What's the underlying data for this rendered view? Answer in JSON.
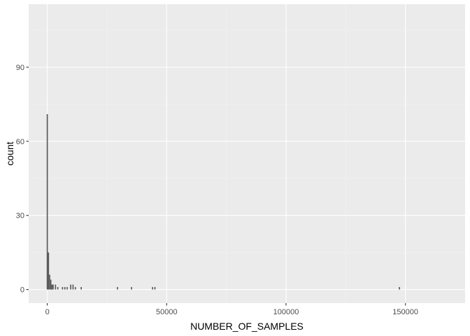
{
  "chart_data": {
    "type": "bar",
    "subtype": "histogram",
    "xlabel": "NUMBER_OF_SAMPLES",
    "ylabel": "count",
    "xlim": [
      -7800,
      175000
    ],
    "ylim": [
      -5.5,
      115.5
    ],
    "x_ticks": [
      0,
      50000,
      100000,
      150000
    ],
    "x_tick_labels": [
      "0",
      "50000",
      "100000",
      "150000"
    ],
    "y_ticks": [
      0,
      30,
      60,
      90
    ],
    "y_tick_labels": [
      "0",
      "30",
      "60",
      "90"
    ],
    "x_minor_ticks": [
      25000,
      75000,
      125000
    ],
    "y_minor_ticks": [
      15,
      45,
      75,
      105
    ],
    "bin_width": 490,
    "grid": true,
    "legend": "none",
    "bins": [
      {
        "x": 0,
        "count": 71
      },
      {
        "x": 490,
        "count": 15
      },
      {
        "x": 980,
        "count": 6
      },
      {
        "x": 1470,
        "count": 4
      },
      {
        "x": 1960,
        "count": 2
      },
      {
        "x": 2450,
        "count": 2
      },
      {
        "x": 3430,
        "count": 2
      },
      {
        "x": 4410,
        "count": 1
      },
      {
        "x": 6370,
        "count": 1
      },
      {
        "x": 7350,
        "count": 1
      },
      {
        "x": 8330,
        "count": 1
      },
      {
        "x": 9800,
        "count": 2
      },
      {
        "x": 10780,
        "count": 2
      },
      {
        "x": 11760,
        "count": 1
      },
      {
        "x": 14210,
        "count": 1
      },
      {
        "x": 29400,
        "count": 1
      },
      {
        "x": 35280,
        "count": 1
      },
      {
        "x": 44100,
        "count": 1
      },
      {
        "x": 45080,
        "count": 1
      },
      {
        "x": 147490,
        "count": 1
      }
    ]
  },
  "colors": {
    "panel_background": "#ebebeb",
    "grid_major": "#ffffff",
    "grid_minor": "#f2f2f2",
    "bar_fill": "#595959",
    "tick_mark": "#333333",
    "tick_text": "#4d4d4d"
  }
}
